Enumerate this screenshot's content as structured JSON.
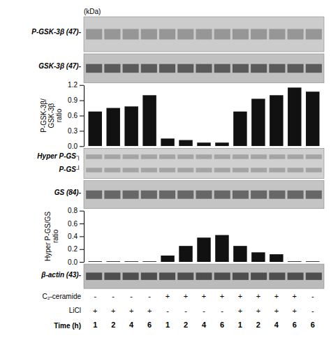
{
  "chart_data": [
    {
      "type": "bar",
      "categories": [
        "1",
        "2",
        "4",
        "6",
        "1",
        "2",
        "4",
        "6",
        "1",
        "2",
        "4",
        "6",
        "6"
      ],
      "values": [
        0.68,
        0.75,
        0.78,
        1.0,
        0.15,
        0.12,
        0.07,
        0.07,
        0.68,
        0.93,
        1.0,
        1.15,
        1.07
      ],
      "color": "#111111",
      "ylabel": "P-GSK-3β/\nGSK-3β\nratio",
      "ylim": [
        0.0,
        1.2
      ],
      "yticks": [
        {
          "value": 0.0,
          "label": "0.0"
        },
        0.3,
        0.6,
        0.9,
        1.2
      ],
      "tick_labels": "y",
      "annotations": [
        "(kDa)"
      ],
      "blots": [
        {
          "labels": [
            "P-GSK-3β (47)-"
          ],
          "color": "#cccccc",
          "band_color": "#888888"
        },
        {
          "labels": [
            "GSK-3β (47)-"
          ],
          "color": "#c0c0c0",
          "band_color": "#404040"
        }
      ]
    },
    {
      "type": "bar",
      "categories": [
        "1",
        "2",
        "4",
        "6",
        "1",
        "2",
        "4",
        "6",
        "1",
        "2",
        "4",
        "6",
        "6"
      ],
      "values": [
        0.01,
        0.01,
        0.01,
        0.01,
        0.1,
        0.25,
        0.38,
        0.42,
        0.25,
        0.15,
        0.12,
        0.01,
        0.01
      ],
      "color": "#111111",
      "ylabel": "Hyper P-GS/GS\nratio",
      "xlabel": "Time (h)",
      "ylim": [
        0.0,
        0.8
      ],
      "yticks": [
        {
          "value": 0.0,
          "label": "0.0"
        },
        0.2,
        0.4,
        0.6,
        0.8
      ],
      "blots": [
        {
          "labels": [
            "Hyper P-GS┐",
            "P-GS┘"
          ],
          "color": "#d0d0d0",
          "band_color": "#999999"
        },
        {
          "labels": [
            "GS (84)-"
          ],
          "color": "#c4c4c4",
          "band_color": "#505050"
        }
      ],
      "blots_below": [
        {
          "labels": [
            "β-actin (43)-"
          ],
          "color": "#bbbbbb",
          "band_color": "#333333"
        }
      ],
      "treatments": [
        {
          "label": "C₂-ceramide",
          "values": [
            "-",
            "-",
            "-",
            "-",
            "+",
            "+",
            "+",
            "+",
            "+",
            "+",
            "+",
            "+",
            "-"
          ]
        },
        {
          "label": "LiCl",
          "values": [
            "+",
            "+",
            "+",
            "+",
            "-",
            "-",
            "-",
            "-",
            "+",
            "+",
            "+",
            "+",
            "-"
          ]
        }
      ]
    }
  ]
}
